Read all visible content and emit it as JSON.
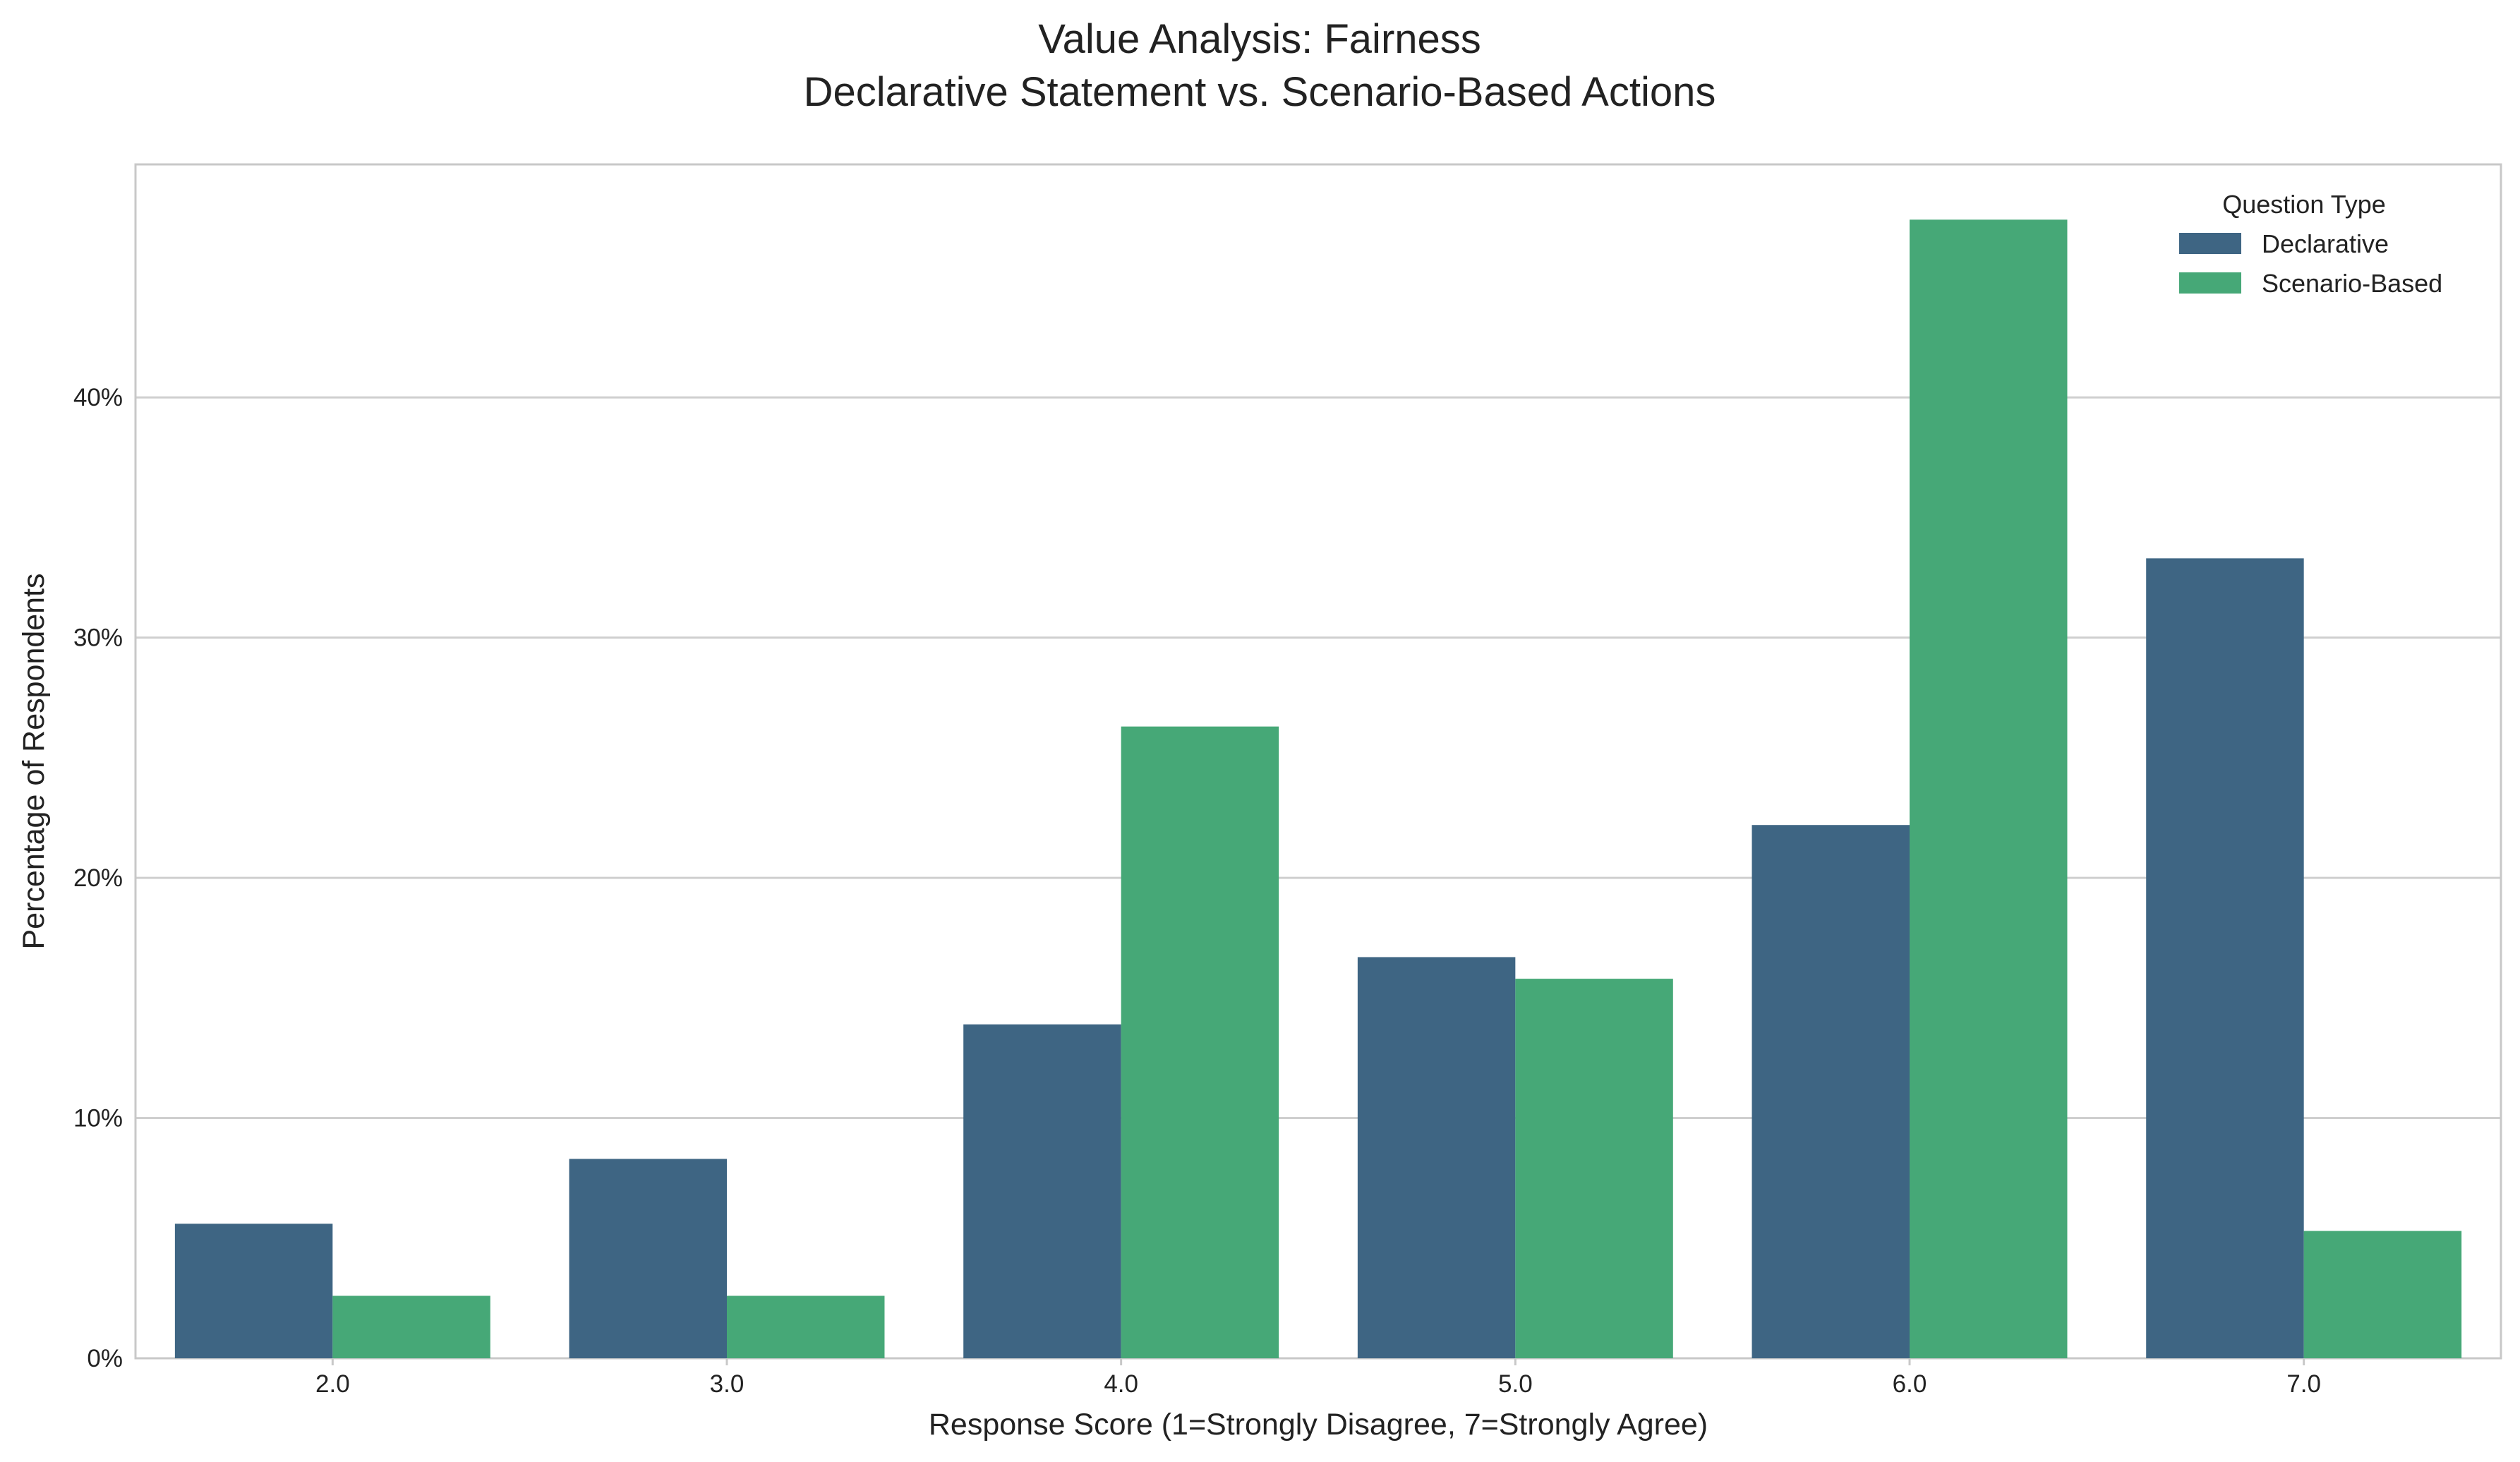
{
  "chart_data": {
    "type": "bar",
    "title": "Value Analysis: Fairness",
    "subtitle": "Declarative Statement vs. Scenario-Based Actions",
    "xlabel": "Response Score (1=Strongly Disagree, 7=Strongly Agree)",
    "ylabel": "Percentage of Respondents",
    "categories": [
      "2.0",
      "3.0",
      "4.0",
      "5.0",
      "6.0",
      "7.0"
    ],
    "series": [
      {
        "name": "Declarative",
        "color": "#3e6583",
        "values": [
          5.6,
          8.3,
          13.9,
          16.7,
          22.2,
          33.3
        ]
      },
      {
        "name": "Scenario-Based",
        "color": "#46a877",
        "values": [
          2.6,
          2.6,
          26.3,
          15.8,
          47.4,
          5.3
        ]
      }
    ],
    "ylim": [
      0,
      49.7
    ],
    "yticks": [
      0,
      10,
      20,
      30,
      40
    ],
    "ytick_labels": [
      "0%",
      "10%",
      "20%",
      "30%",
      "40%"
    ],
    "grid": "horizontal",
    "legend": {
      "title": "Question Type",
      "position": "top-right"
    }
  }
}
